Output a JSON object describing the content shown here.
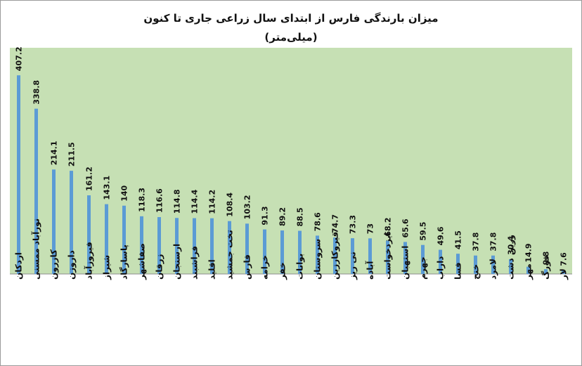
{
  "chart_data": {
    "type": "bar",
    "title": "میزان بارندگی فارس از ابتدای سال زراعی جاری تا کنون",
    "subtitle": "(میلی‌متر)",
    "categories": [
      "اردکان",
      "نورآباد ممسنی",
      "کازرون",
      "داروزن",
      "فیروزآباد",
      "شیراز",
      "پاسارگاد",
      "صفاشهر",
      "زرقان",
      "ارسنجان",
      "فراشبند",
      "اقلید",
      "تخت جمشید",
      "فارس",
      "خرامه",
      "خفر",
      "بوانات",
      "سروستان",
      "قیروکارزین",
      "نی ریز",
      "آباده",
      "ایزدخواست",
      "استهبان",
      "جهرم",
      "داراب",
      "فسا",
      "خنج",
      "لامرد",
      "زرین دشت",
      "مهر",
      "فورگ",
      "لار"
    ],
    "values": [
      407.2,
      338.8,
      214.1,
      211.5,
      161.2,
      143.1,
      140,
      118.3,
      116.6,
      114.8,
      114.4,
      114.2,
      108.4,
      103.2,
      91.3,
      89.2,
      88.5,
      78.6,
      74.7,
      73.3,
      73,
      68.2,
      65.6,
      59.5,
      49.6,
      41.5,
      37.8,
      37.8,
      30.4,
      14.9,
      9.8,
      7.6
    ],
    "value_labels": [
      "407.2",
      "338.8",
      "214.1",
      "211.5",
      "161.2",
      "143.1",
      "140",
      "118.3",
      "116.6",
      "114.8",
      "114.4",
      "114.2",
      "108.4",
      "103.2",
      "91.3",
      "89.2",
      "88.5",
      "78.6",
      "74.7",
      "73.3",
      "73",
      "68.2",
      "65.6",
      "59.5",
      "49.6",
      "41.5",
      "37.8",
      "37.8",
      "30.4",
      "14.9",
      "9.8",
      "7.6"
    ],
    "ylim": [
      0,
      420
    ],
    "grid": false,
    "legend": "none",
    "colors": {
      "plot_background": "#c6e0b4",
      "bar": "#5b9bd5"
    }
  }
}
